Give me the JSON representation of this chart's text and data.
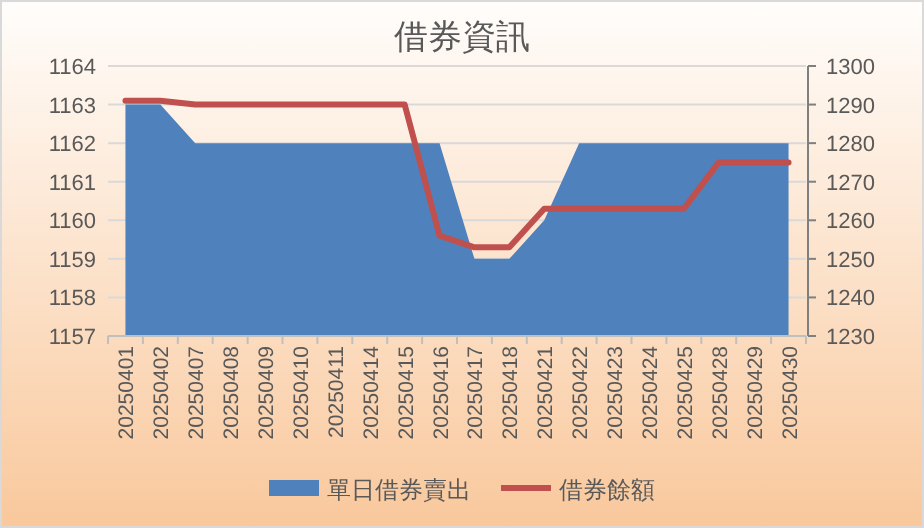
{
  "chart_data": {
    "type": "area",
    "title": "借券資訊",
    "categories": [
      "20250401",
      "20250402",
      "20250407",
      "20250408",
      "20250409",
      "20250410",
      "20250411",
      "20250414",
      "20250415",
      "20250416",
      "20250417",
      "20250418",
      "20250421",
      "20250422",
      "20250423",
      "20250424",
      "20250425",
      "20250428",
      "20250429",
      "20250430"
    ],
    "series": [
      {
        "name": "單日借券賣出",
        "color": "#4f81bd",
        "values": [
          1163,
          1163,
          1162,
          1162,
          1162,
          1162,
          1162,
          1162,
          1162,
          1162,
          1159,
          1159,
          1160,
          1162,
          1162,
          1162,
          1162,
          1162,
          1162,
          1162
        ]
      },
      {
        "name": "借券餘額",
        "type": "line",
        "axis": "y2",
        "color": "#c0504d",
        "values": [
          1291,
          1291,
          1290,
          1290,
          1290,
          1290,
          1290,
          1290,
          1290,
          1256,
          1253,
          1253,
          1263,
          1263,
          1263,
          1263,
          1263,
          1275,
          1275,
          1275
        ]
      }
    ],
    "ylim": [
      1157,
      1164
    ],
    "yticks": [
      1157,
      1158,
      1159,
      1160,
      1161,
      1162,
      1163,
      1164
    ],
    "y2lim": [
      1230,
      1300
    ],
    "y2ticks": [
      1230,
      1240,
      1250,
      1260,
      1270,
      1280,
      1290,
      1300
    ],
    "grid": "y",
    "legend": "bottom",
    "marker": "none",
    "line_style": "solid"
  }
}
